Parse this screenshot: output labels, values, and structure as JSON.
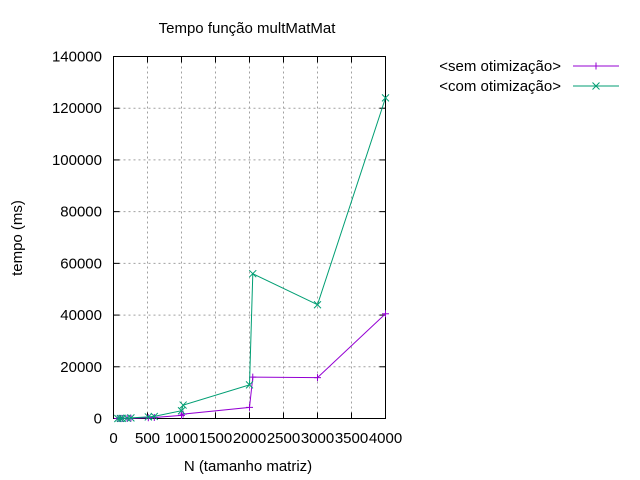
{
  "chart_data": {
    "type": "line",
    "title": "Tempo função multMatMat",
    "xlabel": "N (tamanho matriz)",
    "ylabel": "tempo (ms)",
    "xlim": [
      0,
      4000
    ],
    "ylim": [
      0,
      140000
    ],
    "xticks": [
      0,
      500,
      1000,
      1500,
      2000,
      2500,
      3000,
      3500,
      4000
    ],
    "yticks": [
      0,
      20000,
      40000,
      60000,
      80000,
      100000,
      120000,
      140000
    ],
    "xtick_labels": [
      "0",
      "500",
      "1000",
      "1500",
      "2000",
      "2500",
      "3000",
      "3500",
      "4000"
    ],
    "ytick_labels": [
      "0",
      "20000",
      "40000",
      "60000",
      "80000",
      "100000",
      "120000",
      "140000"
    ],
    "grid": true,
    "legend_position": "outside-top-right",
    "series": [
      {
        "name": "<sem otimização>",
        "color": "#9400d3",
        "marker": "plus",
        "points": [
          [
            64,
            5
          ],
          [
            100,
            15
          ],
          [
            128,
            30
          ],
          [
            200,
            60
          ],
          [
            256,
            120
          ],
          [
            512,
            300
          ],
          [
            600,
            400
          ],
          [
            1000,
            1200
          ],
          [
            1024,
            1700
          ],
          [
            2000,
            4300
          ],
          [
            2048,
            16000
          ],
          [
            3000,
            15800
          ],
          [
            4000,
            40500
          ]
        ]
      },
      {
        "name": "<com otimização>",
        "color": "#009e73",
        "marker": "cross",
        "points": [
          [
            64,
            10
          ],
          [
            100,
            30
          ],
          [
            128,
            60
          ],
          [
            200,
            120
          ],
          [
            256,
            250
          ],
          [
            512,
            600
          ],
          [
            600,
            800
          ],
          [
            1000,
            3000
          ],
          [
            1024,
            5200
          ],
          [
            2000,
            13000
          ],
          [
            2048,
            56000
          ],
          [
            3000,
            44000
          ],
          [
            4000,
            124000
          ]
        ]
      }
    ]
  }
}
